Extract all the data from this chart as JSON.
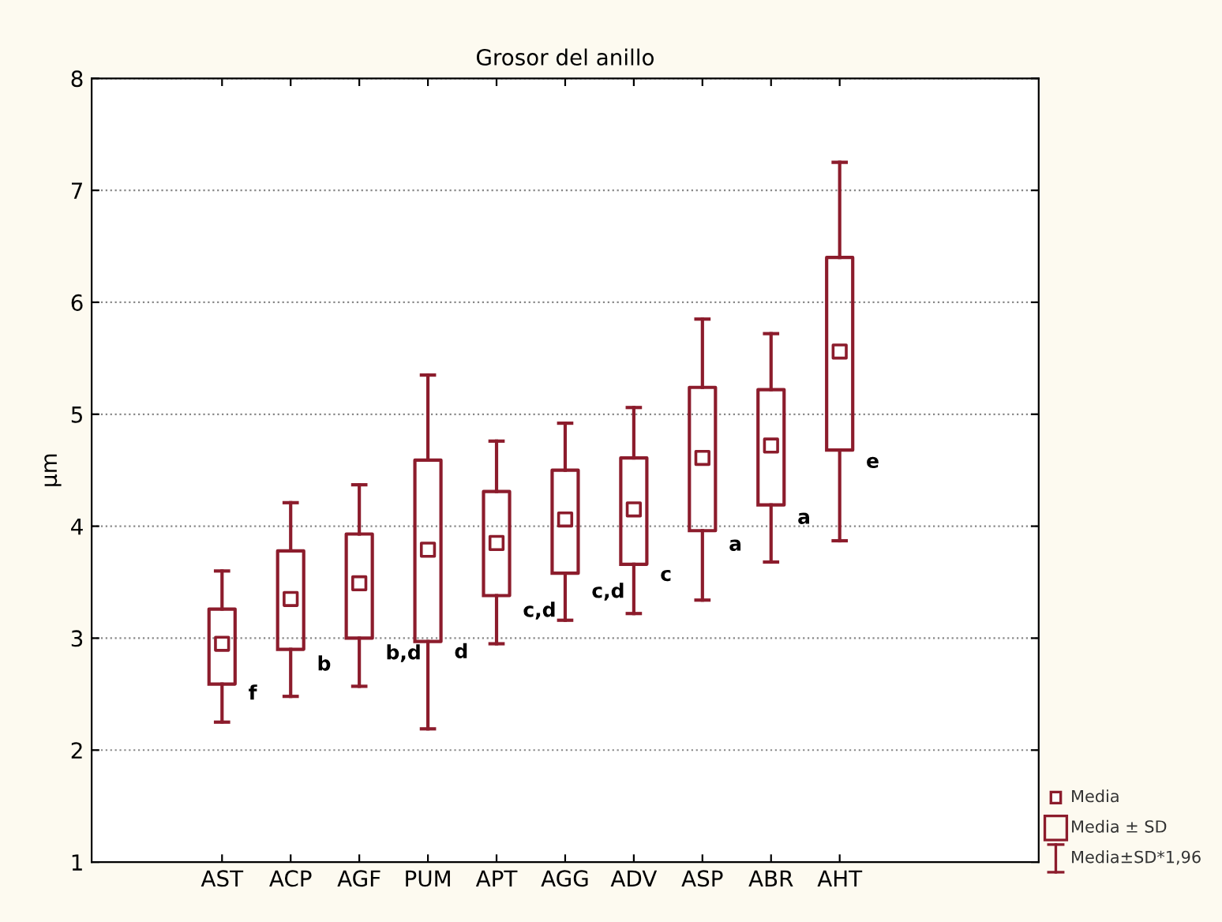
{
  "chart_data": {
    "type": "box",
    "title": "Grosor del anillo",
    "ylabel": "µm",
    "categories": [
      "AST",
      "ACP",
      "AGF",
      "PUM",
      "APT",
      "AGG",
      "ADV",
      "ASP",
      "ABR",
      "AHT"
    ],
    "series": [
      {
        "color": "#8c1c2c",
        "boxes": [
          {
            "low": 2.25,
            "q1": 2.59,
            "median": 2.95,
            "q3": 3.26,
            "high": 3.6
          },
          {
            "low": 2.48,
            "q1": 2.9,
            "median": 3.35,
            "q3": 3.78,
            "high": 4.21
          },
          {
            "low": 2.57,
            "q1": 3.0,
            "median": 3.49,
            "q3": 3.93,
            "high": 4.37
          },
          {
            "low": 2.19,
            "q1": 2.97,
            "median": 3.79,
            "q3": 4.59,
            "high": 5.35
          },
          {
            "low": 2.95,
            "q1": 3.38,
            "median": 3.85,
            "q3": 4.31,
            "high": 4.76
          },
          {
            "low": 3.16,
            "q1": 3.58,
            "median": 4.06,
            "q3": 4.5,
            "high": 4.92
          },
          {
            "low": 3.22,
            "q1": 3.66,
            "median": 4.15,
            "q3": 4.61,
            "high": 5.06
          },
          {
            "low": 3.34,
            "q1": 3.96,
            "median": 4.61,
            "q3": 5.24,
            "high": 5.85
          },
          {
            "low": 3.68,
            "q1": 4.19,
            "median": 4.72,
            "q3": 5.22,
            "high": 5.72
          },
          {
            "low": 3.87,
            "q1": 4.68,
            "median": 5.56,
            "q3": 6.4,
            "high": 7.25
          }
        ]
      }
    ],
    "ylim": [
      1,
      8
    ],
    "yticks": [
      1,
      2,
      3,
      4,
      5,
      6,
      7,
      8
    ],
    "grid": "y",
    "annotations": [
      {
        "text": "f",
        "x": "AST",
        "y": 2.5
      },
      {
        "text": "b",
        "x": "ACP",
        "y": 2.76
      },
      {
        "text": "b,d",
        "x": "AGF",
        "y": 2.86
      },
      {
        "text": "d",
        "x": "PUM",
        "y": 2.87
      },
      {
        "text": "c,d",
        "x": "APT",
        "y": 3.24
      },
      {
        "text": "c,d",
        "x": "AGG",
        "y": 3.41
      },
      {
        "text": "c",
        "x": "ADV",
        "y": 3.56
      },
      {
        "text": "a",
        "x": "ASP",
        "y": 3.83
      },
      {
        "text": "a",
        "x": "ABR",
        "y": 4.07
      },
      {
        "text": "e",
        "x": "AHT",
        "y": 4.57
      },
      "Media",
      "Media ± SD",
      "Media±SD*1,96"
    ]
  }
}
